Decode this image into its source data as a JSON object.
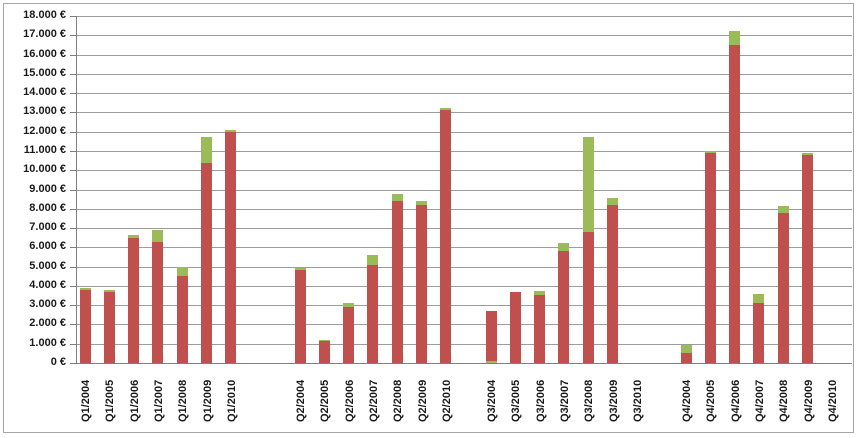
{
  "chart_data": {
    "type": "bar",
    "variant": "stacked-column",
    "title": "",
    "legend_visible": false,
    "y_axis": {
      "min": 0,
      "max": 18000,
      "step": 1000,
      "unit": "€",
      "tick_labels": [
        "18.000 €",
        "17.000 €",
        "16.000 €",
        "15.000 €",
        "14.000 €",
        "13.000 €",
        "12.000 €",
        "11.000 €",
        "10.000 €",
        "9.000 €",
        "8.000 €",
        "7.000 €",
        "6.000 €",
        "5.000 €",
        "4.000 €",
        "3.000 €",
        "2.000 €",
        "1.000 €",
        "0 €"
      ]
    },
    "x_axis": {
      "label_rotation_degrees": -90,
      "groups": [
        "Q1",
        "Q2",
        "Q3",
        "Q4"
      ],
      "years_per_group": [
        "2004",
        "2005",
        "2006",
        "2007",
        "2008",
        "2009",
        "2010"
      ]
    },
    "series": [
      {
        "name": "red-series",
        "color": "#C0504D"
      },
      {
        "name": "green-series",
        "color": "#9BBB59"
      }
    ],
    "bars": [
      {
        "label": "Q1/2004",
        "red": 3800,
        "green": 100
      },
      {
        "label": "Q1/2005",
        "red": 3700,
        "green": 100
      },
      {
        "label": "Q1/2006",
        "red": 6500,
        "green": 150
      },
      {
        "label": "Q1/2007",
        "red": 6300,
        "green": 600
      },
      {
        "label": "Q1/2008",
        "red": 4500,
        "green": 500
      },
      {
        "label": "Q1/2009",
        "red": 10400,
        "green": 1300
      },
      {
        "label": "Q1/2010",
        "red": 12000,
        "green": 100
      },
      {
        "label": "Q2/2004",
        "red": 4800,
        "green": 150
      },
      {
        "label": "Q2/2005",
        "red": 1150,
        "green": 50
      },
      {
        "label": "Q2/2006",
        "red": 2900,
        "green": 200
      },
      {
        "label": "Q2/2007",
        "red": 5100,
        "green": 500
      },
      {
        "label": "Q2/2008",
        "red": 8400,
        "green": 350
      },
      {
        "label": "Q2/2009",
        "red": 8200,
        "green": 200
      },
      {
        "label": "Q2/2010",
        "red": 13100,
        "green": 150
      },
      {
        "label": "Q3/2004",
        "red": 2600,
        "green": 0,
        "green_bottom": 100
      },
      {
        "label": "Q3/2005",
        "red": 3700,
        "green": 0
      },
      {
        "label": "Q3/2006",
        "red": 3550,
        "green": 200
      },
      {
        "label": "Q3/2007",
        "red": 5800,
        "green": 400
      },
      {
        "label": "Q3/2008",
        "red": 6800,
        "green": 4900
      },
      {
        "label": "Q3/2009",
        "red": 8200,
        "green": 350
      },
      {
        "label": "Q3/2010",
        "red": 0,
        "green": 0
      },
      {
        "label": "Q4/2004",
        "red": 500,
        "green": 450
      },
      {
        "label": "Q4/2005",
        "red": 10900,
        "green": 100
      },
      {
        "label": "Q4/2006",
        "red": 16500,
        "green": 700
      },
      {
        "label": "Q4/2007",
        "red": 3100,
        "green": 500
      },
      {
        "label": "Q4/2008",
        "red": 7800,
        "green": 350
      },
      {
        "label": "Q4/2009",
        "red": 10800,
        "green": 100
      },
      {
        "label": "Q4/2010",
        "red": 0,
        "green": 0
      }
    ]
  },
  "style": {
    "bar_red": "#C0504D",
    "bar_green": "#9BBB59",
    "gridline_color": "#9C9C9C",
    "axis_color": "#7F7F7F",
    "frame_border_color": "#A6A6A6",
    "text_color": "#1A1A1A",
    "background": "#FFFFFF"
  }
}
